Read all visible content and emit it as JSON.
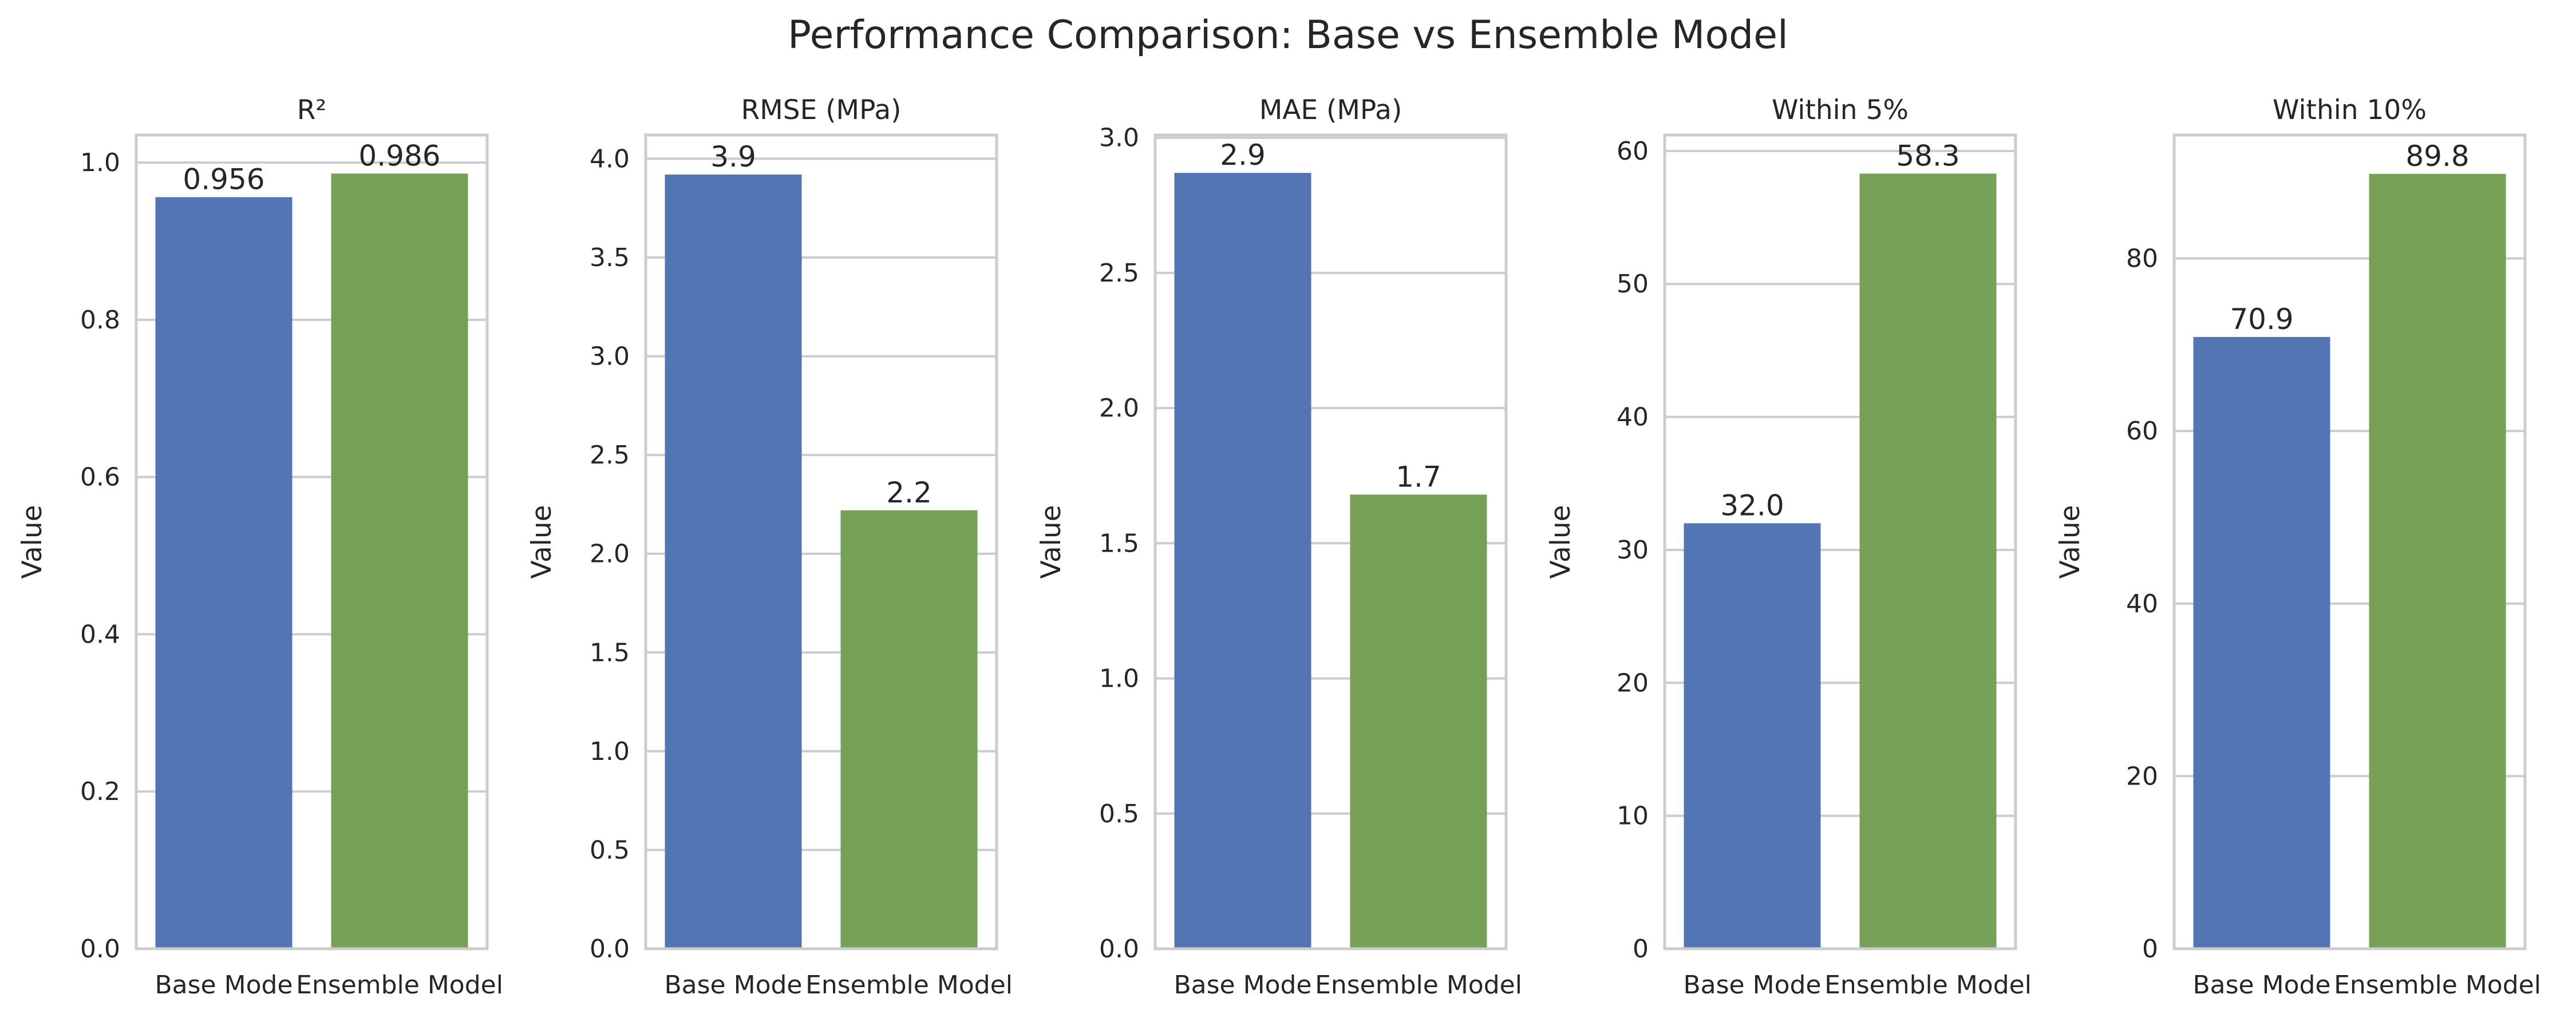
{
  "figure_title": "Performance Comparison: Base vs Ensemble Model",
  "colors": {
    "base": "#5475b4",
    "ensemble": "#76a055"
  },
  "chart_data": [
    {
      "type": "bar",
      "title": "R²",
      "ylabel": "Value",
      "categories": [
        "Base Mode",
        "Ensemble Model"
      ],
      "values": [
        0.956,
        0.986
      ],
      "data_labels": [
        "0.956",
        "0.986"
      ],
      "ylim": [
        0,
        1.035
      ],
      "yticks": [
        0,
        0.2,
        0.4,
        0.6,
        0.8,
        1.0
      ],
      "ytick_labels": [
        "0.0",
        "0.2",
        "0.4",
        "0.6",
        "0.8",
        "1.0"
      ],
      "grid": true
    },
    {
      "type": "bar",
      "title": "RMSE (MPa)",
      "ylabel": "Value",
      "categories": [
        "Base Mode",
        "Ensemble Model"
      ],
      "values": [
        3.92,
        2.22
      ],
      "data_labels": [
        "3.9",
        "2.2"
      ],
      "ylim": [
        0,
        4.12
      ],
      "yticks": [
        0,
        0.5,
        1.0,
        1.5,
        2.0,
        2.5,
        3.0,
        3.5,
        4.0
      ],
      "ytick_labels": [
        "0.0",
        "0.5",
        "1.0",
        "1.5",
        "2.0",
        "2.5",
        "3.0",
        "3.5",
        "4.0"
      ],
      "grid": true
    },
    {
      "type": "bar",
      "title": "MAE (MPa)",
      "ylabel": "Value",
      "categories": [
        "Base Mode",
        "Ensemble Model"
      ],
      "values": [
        2.87,
        1.68
      ],
      "data_labels": [
        "2.9",
        "1.7"
      ],
      "ylim": [
        0,
        3.01
      ],
      "yticks": [
        0,
        0.5,
        1.0,
        1.5,
        2.0,
        2.5,
        3.0
      ],
      "ytick_labels": [
        "0.0",
        "0.5",
        "1.0",
        "1.5",
        "2.0",
        "2.5",
        "3.0"
      ],
      "grid": true
    },
    {
      "type": "bar",
      "title": "Within 5%",
      "ylabel": "Value",
      "categories": [
        "Base Mode",
        "Ensemble Model"
      ],
      "values": [
        32.0,
        58.3
      ],
      "data_labels": [
        "32.0",
        "58.3"
      ],
      "ylim": [
        0,
        61.2
      ],
      "yticks": [
        0,
        10,
        20,
        30,
        40,
        50,
        60
      ],
      "ytick_labels": [
        "0",
        "10",
        "20",
        "30",
        "40",
        "50",
        "60"
      ],
      "grid": true
    },
    {
      "type": "bar",
      "title": "Within 10%",
      "ylabel": "Value",
      "categories": [
        "Base Mode",
        "Ensemble Model"
      ],
      "values": [
        70.9,
        89.8
      ],
      "data_labels": [
        "70.9",
        "89.8"
      ],
      "ylim": [
        0,
        94.3
      ],
      "yticks": [
        0,
        20,
        40,
        60,
        80
      ],
      "ytick_labels": [
        "0",
        "20",
        "40",
        "60",
        "80"
      ],
      "grid": true
    }
  ]
}
